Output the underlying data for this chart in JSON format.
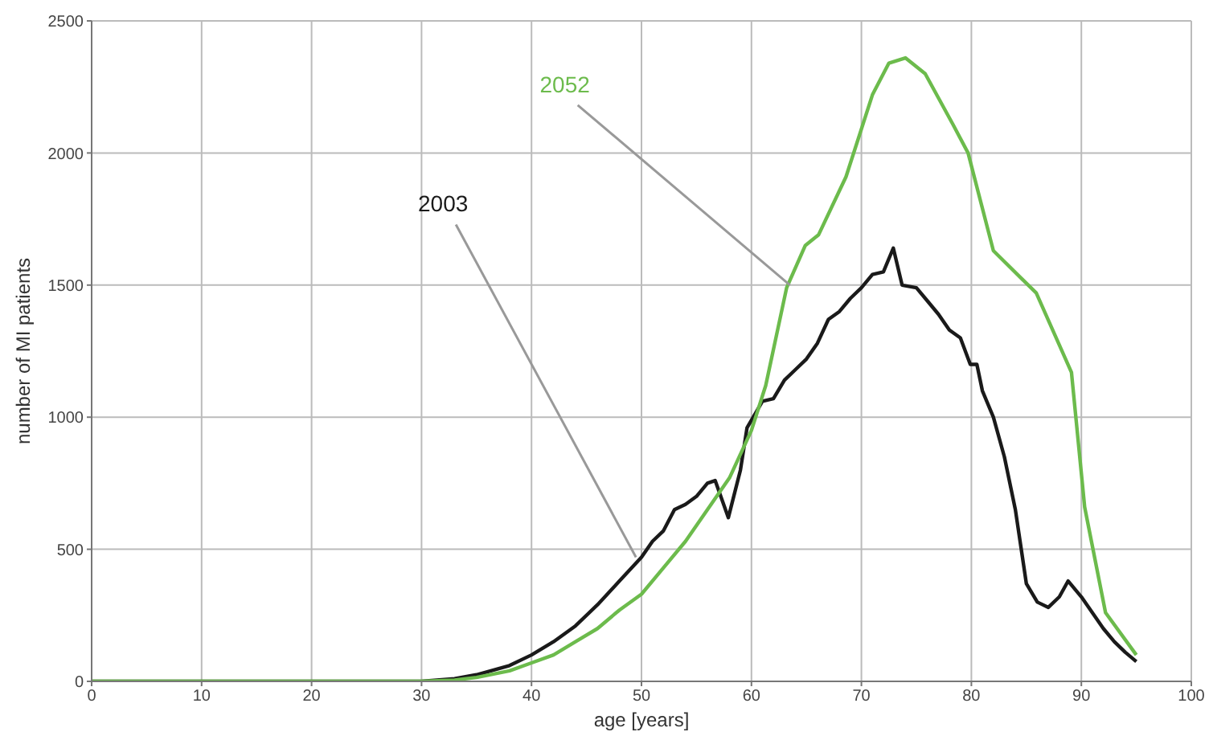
{
  "chart_data": {
    "type": "line",
    "xlabel": "age [years]",
    "ylabel": "number of MI patients",
    "xlim": [
      0,
      100
    ],
    "xticks": [
      0,
      10,
      20,
      30,
      40,
      50,
      60,
      70,
      80,
      90,
      100
    ],
    "ylim": [
      0,
      2500
    ],
    "yticks": [
      0,
      500,
      1000,
      1500,
      2000,
      2500
    ],
    "grid": true,
    "legend": false,
    "marker": "none",
    "line_style": "solid",
    "series": [
      {
        "color": "#1a1a1a",
        "x": [
          0,
          10,
          20,
          30,
          33,
          35,
          38,
          40,
          42,
          44,
          46,
          48,
          50,
          51,
          52,
          53,
          54,
          55,
          56,
          56.7,
          57.9,
          59,
          59.6,
          61,
          62,
          63,
          64,
          65,
          66,
          67,
          68,
          69,
          70,
          71,
          72,
          72.9,
          73.7,
          75,
          76,
          77,
          78,
          79,
          79.9,
          80.5,
          81,
          82,
          83,
          84,
          85,
          86,
          87,
          88,
          88.8,
          90,
          91,
          92,
          93,
          94,
          95
        ],
        "values": [
          0,
          0,
          0,
          0,
          10,
          25,
          60,
          100,
          150,
          210,
          290,
          380,
          470,
          530,
          570,
          650,
          670,
          700,
          750,
          760,
          620,
          800,
          960,
          1060,
          1070,
          1140,
          1180,
          1220,
          1280,
          1370,
          1400,
          1450,
          1490,
          1540,
          1550,
          1640,
          1500,
          1490,
          1440,
          1390,
          1330,
          1300,
          1200,
          1200,
          1100,
          1000,
          850,
          650,
          370,
          300,
          280,
          320,
          380,
          320,
          260,
          200,
          150,
          110,
          75
        ]
      },
      {
        "color": "#6cbb4c",
        "x": [
          0,
          10,
          20,
          30,
          33,
          35,
          38,
          40,
          42,
          44,
          46,
          48,
          50,
          52,
          54,
          56,
          58,
          60,
          61.3,
          63.2,
          64.9,
          66.1,
          68.6,
          71,
          72.5,
          74,
          75.8,
          78.3,
          79.7,
          82,
          85.9,
          89.1,
          90.3,
          92.2,
          95
        ],
        "values": [
          0,
          0,
          0,
          0,
          5,
          15,
          40,
          70,
          100,
          150,
          200,
          270,
          330,
          430,
          530,
          650,
          770,
          950,
          1120,
          1490,
          1650,
          1690,
          1910,
          2220,
          2340,
          2360,
          2300,
          2110,
          2000,
          1630,
          1470,
          1170,
          660,
          260,
          100
        ]
      }
    ],
    "annotations": [
      {
        "text": "2003",
        "x": 49.5,
        "y": 470
      },
      {
        "text": "2052",
        "x": 63.5,
        "y": 1500
      }
    ]
  }
}
